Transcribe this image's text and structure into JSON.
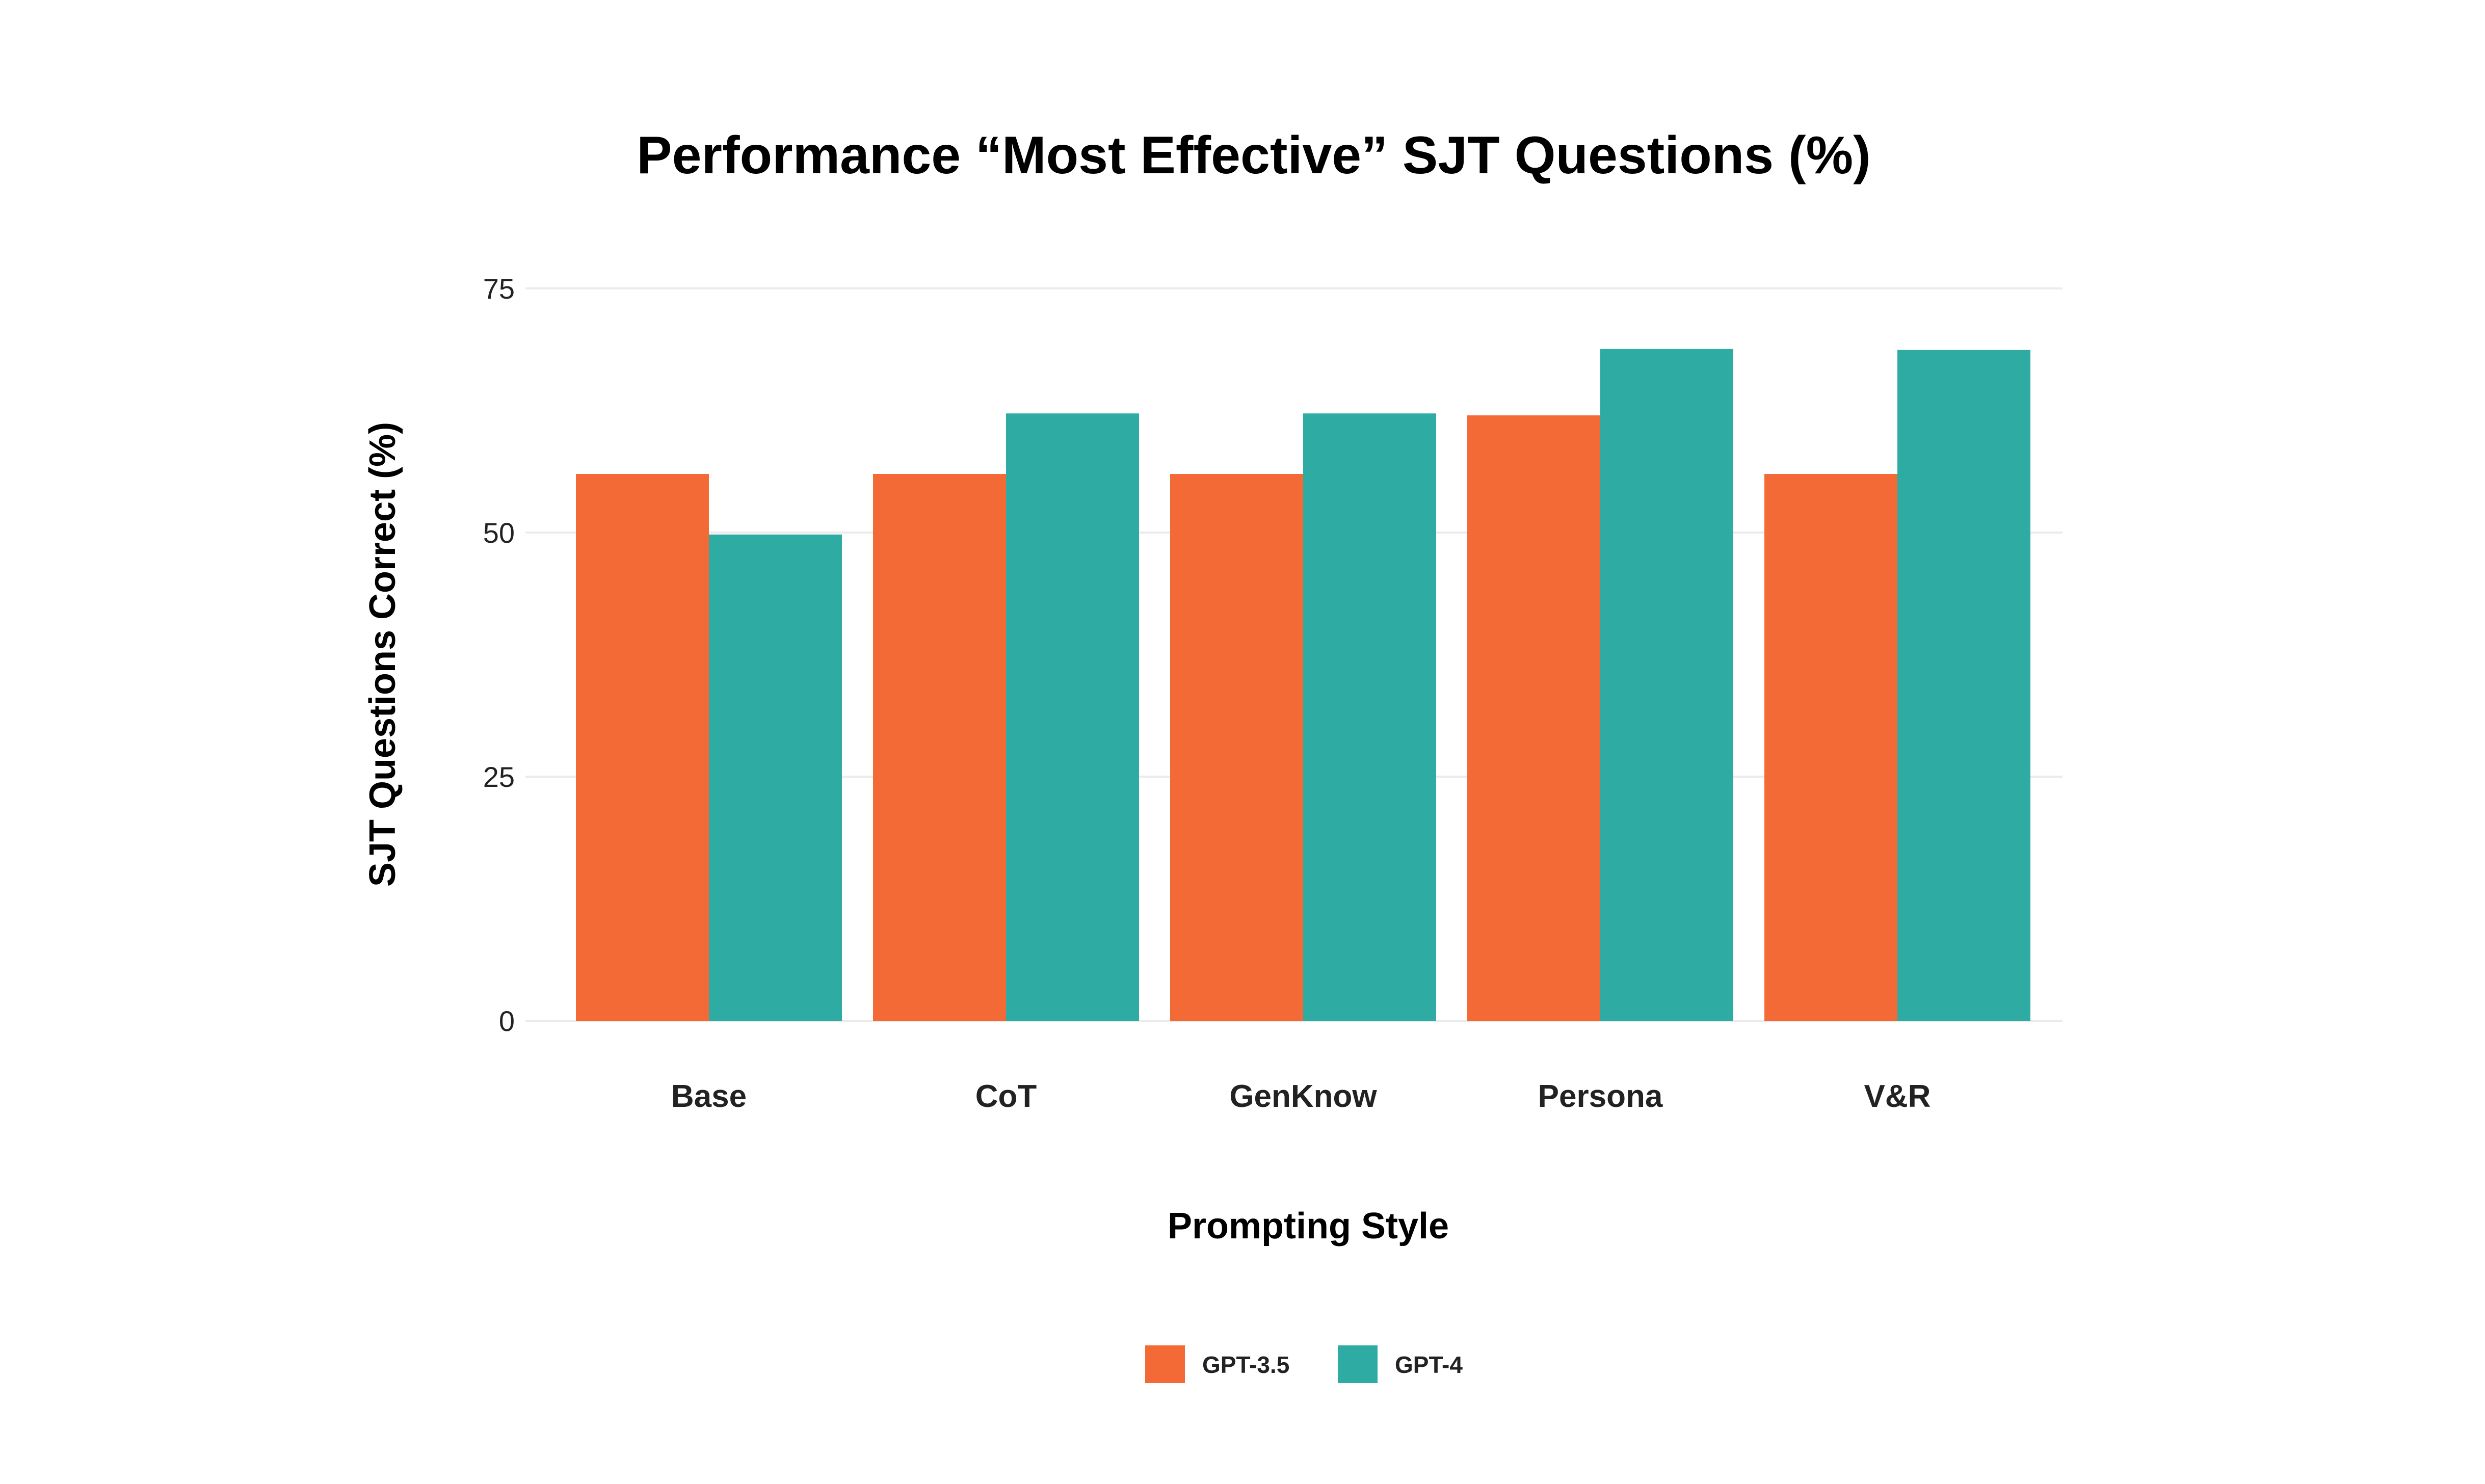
{
  "chart_data": {
    "type": "bar",
    "title": "Performance “Most Effective” SJT Questions (%)",
    "xlabel": "Prompting Style",
    "ylabel": "SJT Questions Correct (%)",
    "categories": [
      "Base",
      "CoT",
      "GenKnow",
      "Persona",
      "V&R"
    ],
    "series": [
      {
        "name": "GPT-3.5",
        "color": "#F46A37",
        "values": [
          56,
          56,
          56,
          62,
          56
        ]
      },
      {
        "name": "GPT-4",
        "color": "#2EABA2",
        "values": [
          49.8,
          62.2,
          62.2,
          68.8,
          68.7
        ]
      }
    ],
    "ylim": [
      0,
      75
    ],
    "yticks": [
      0,
      25,
      50,
      75
    ],
    "grid": true,
    "legend_position": "bottom"
  }
}
